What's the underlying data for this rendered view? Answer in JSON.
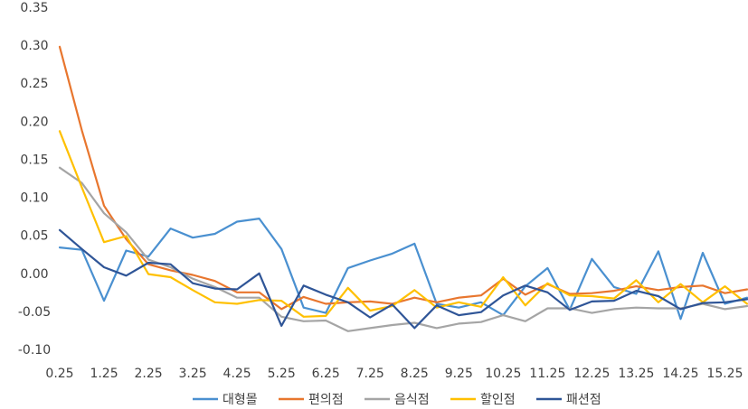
{
  "chart_data": {
    "type": "line",
    "title": "",
    "xlabel": "",
    "ylabel": "",
    "ylim": [
      -0.1,
      0.35
    ],
    "yticks": [
      "0.35",
      "0.30",
      "0.25",
      "0.20",
      "0.15",
      "0.10",
      "0.05",
      "0.00",
      "-0.05",
      "-0.10"
    ],
    "ytick_values": [
      0.35,
      0.3,
      0.25,
      0.2,
      0.15,
      0.1,
      0.05,
      0.0,
      -0.05,
      -0.1
    ],
    "x": [
      0.25,
      0.75,
      1.25,
      1.75,
      2.25,
      2.75,
      3.25,
      3.75,
      4.25,
      4.75,
      5.25,
      5.75,
      6.25,
      6.75,
      7.25,
      7.75,
      8.25,
      8.75,
      9.25,
      9.75,
      10.25,
      10.75,
      11.25,
      11.75,
      12.25,
      12.75,
      13.25,
      13.75,
      14.25,
      14.75,
      15.25,
      15.75
    ],
    "xticks": [
      "0.25",
      "1.25",
      "2.25",
      "3.25",
      "4.25",
      "5.25",
      "6.25",
      "7.25",
      "8.25",
      "9.25",
      "10.25",
      "11.25",
      "12.25",
      "13.25",
      "14.25",
      "15.25"
    ],
    "xtick_values": [
      0.25,
      1.25,
      2.25,
      3.25,
      4.25,
      5.25,
      6.25,
      7.25,
      8.25,
      9.25,
      10.25,
      11.25,
      12.25,
      13.25,
      14.25,
      15.25
    ],
    "grid": false,
    "legend_position": "bottom",
    "series": [
      {
        "name": "대형몰",
        "color": "#4a90d0",
        "values": [
          0.034,
          0.031,
          -0.036,
          0.03,
          0.022,
          0.059,
          0.047,
          0.052,
          0.068,
          0.072,
          0.032,
          -0.045,
          -0.052,
          0.007,
          0.017,
          0.026,
          0.039,
          -0.04,
          -0.045,
          -0.038,
          -0.055,
          -0.017,
          0.007,
          -0.048,
          0.019,
          -0.018,
          -0.027,
          0.029,
          -0.06,
          0.027,
          -0.04,
          -0.032
        ]
      },
      {
        "name": "편의점",
        "color": "#e8762e",
        "values": [
          0.298,
          0.188,
          0.089,
          0.045,
          0.012,
          0.004,
          -0.002,
          -0.01,
          -0.025,
          -0.025,
          -0.047,
          -0.031,
          -0.04,
          -0.038,
          -0.037,
          -0.04,
          -0.032,
          -0.038,
          -0.032,
          -0.029,
          -0.007,
          -0.028,
          -0.014,
          -0.027,
          -0.026,
          -0.023,
          -0.017,
          -0.022,
          -0.018,
          -0.016,
          -0.026,
          -0.021
        ]
      },
      {
        "name": "음식점",
        "color": "#a5a5a5",
        "values": [
          0.139,
          0.119,
          0.079,
          0.054,
          0.018,
          0.008,
          -0.007,
          -0.018,
          -0.032,
          -0.032,
          -0.057,
          -0.063,
          -0.062,
          -0.076,
          -0.072,
          -0.068,
          -0.065,
          -0.072,
          -0.066,
          -0.064,
          -0.055,
          -0.063,
          -0.046,
          -0.046,
          -0.052,
          -0.047,
          -0.045,
          -0.046,
          -0.046,
          -0.04,
          -0.047,
          -0.043
        ]
      },
      {
        "name": "할인점",
        "color": "#ffc000",
        "values": [
          0.187,
          0.113,
          0.041,
          0.049,
          -0.001,
          -0.005,
          -0.022,
          -0.038,
          -0.04,
          -0.035,
          -0.036,
          -0.057,
          -0.056,
          -0.019,
          -0.049,
          -0.043,
          -0.022,
          -0.045,
          -0.038,
          -0.044,
          -0.005,
          -0.042,
          -0.013,
          -0.029,
          -0.03,
          -0.033,
          -0.009,
          -0.038,
          -0.014,
          -0.038,
          -0.017,
          -0.04
        ]
      },
      {
        "name": "패션점",
        "color": "#2f5597",
        "values": [
          0.057,
          0.032,
          0.008,
          -0.003,
          0.014,
          0.012,
          -0.013,
          -0.02,
          -0.021,
          0.0,
          -0.069,
          -0.016,
          -0.028,
          -0.038,
          -0.058,
          -0.041,
          -0.072,
          -0.042,
          -0.055,
          -0.051,
          -0.029,
          -0.016,
          -0.025,
          -0.048,
          -0.037,
          -0.036,
          -0.023,
          -0.03,
          -0.047,
          -0.039,
          -0.038,
          -0.034
        ]
      }
    ]
  }
}
